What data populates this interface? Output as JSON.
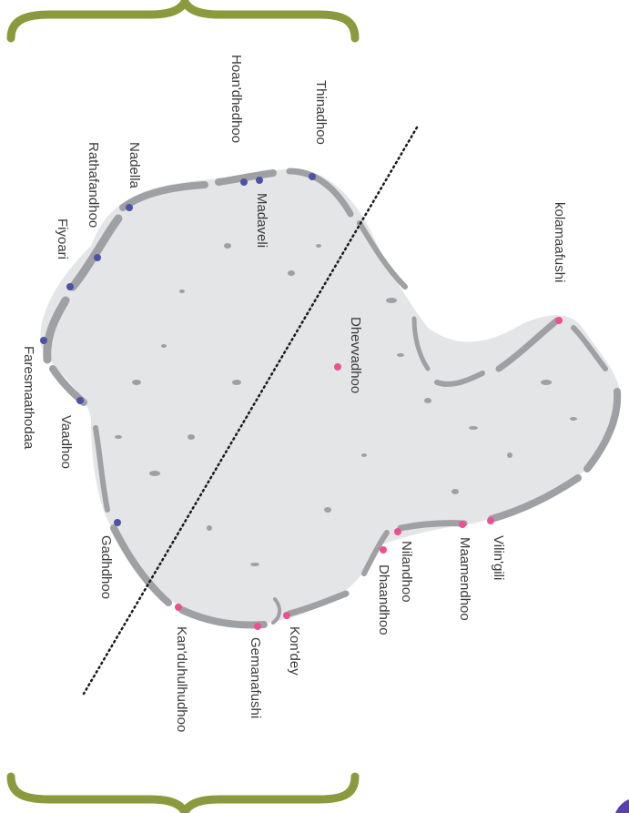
{
  "map": {
    "colors": {
      "brace": "#8a9a3c",
      "atoll_fill": "#e4e5e7",
      "reef": "#9ea0a3",
      "group_a": "#4b52a8",
      "group_b": "#ee4f93",
      "divider": "#1a1a1a"
    },
    "islands": [
      {
        "name": "Thinadhoo",
        "group": "a"
      },
      {
        "name": "Hoan'dhedhoo",
        "group": "a"
      },
      {
        "name": "Madaveli",
        "group": "a"
      },
      {
        "name": "Nadella",
        "group": "a"
      },
      {
        "name": "Rathafandhoo",
        "group": "a"
      },
      {
        "name": "Fiyoari",
        "group": "a"
      },
      {
        "name": "Faresmaathodaa",
        "group": "a"
      },
      {
        "name": "Vaadhoo",
        "group": "a"
      },
      {
        "name": "Gadhdhoo",
        "group": "a"
      },
      {
        "name": "Kan'duhulhudhoo",
        "group": "b"
      },
      {
        "name": "Gemanafushi",
        "group": "b"
      },
      {
        "name": "Kon'dey",
        "group": "b"
      },
      {
        "name": "Dhaandhoo",
        "group": "b"
      },
      {
        "name": "Nilandhoo",
        "group": "b"
      },
      {
        "name": "Maamendhoo",
        "group": "b"
      },
      {
        "name": "Vilin'gili",
        "group": "b"
      },
      {
        "name": "Dhevvadhoo",
        "group": "b"
      },
      {
        "name": "kolamaafushi",
        "group": "b"
      }
    ]
  }
}
